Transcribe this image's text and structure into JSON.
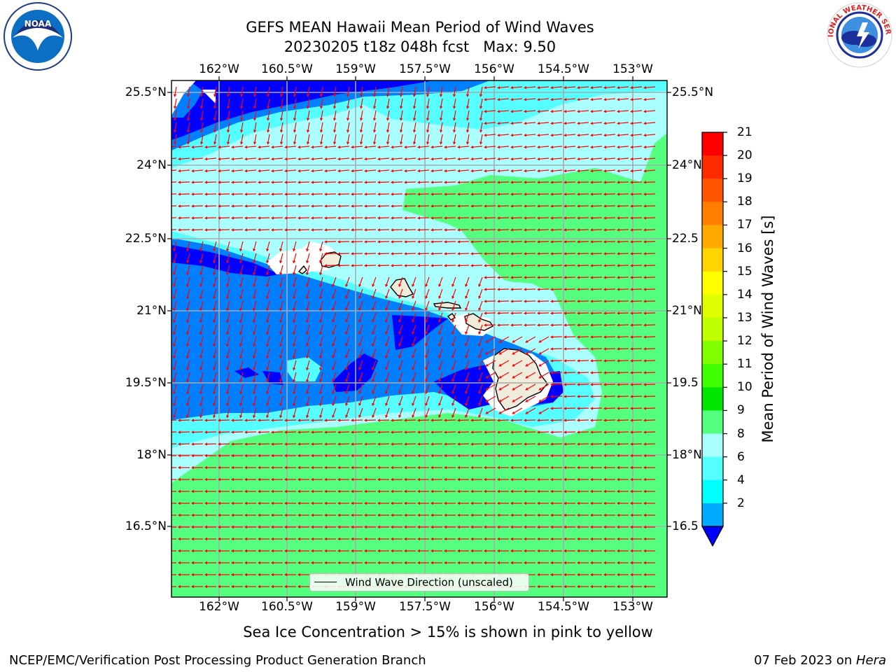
{
  "title": {
    "line1": "GEFS MEAN Hawaii Mean Period of Wind Waves",
    "line2": "20230205 t18z 048h fcst   Max: 9.50"
  },
  "axes": {
    "lon_ticks": [
      "162°W",
      "160.5°W",
      "159°W",
      "157.5°W",
      "156°W",
      "154.5°W",
      "153°W"
    ],
    "lat_ticks_left": [
      "25.5°N",
      "24°N",
      "22.5°N",
      "21°N",
      "19.5°N",
      "18°N",
      "16.5°N"
    ],
    "lat_ticks_right": [
      "25.5°N",
      "24°N",
      "22.5",
      "21°N",
      "19.5",
      "18°N",
      "16.5"
    ]
  },
  "colorbar": {
    "label": "Mean Period of Wind Waves [s]",
    "ticks": [
      "21",
      "20",
      "19",
      "18",
      "17",
      "16",
      "15",
      "14",
      "13",
      "12",
      "11",
      "10",
      "9",
      "8",
      "6",
      "4",
      "2"
    ],
    "colors": [
      "#ff0000",
      "#ff2a00",
      "#ff5500",
      "#ff8000",
      "#ffaa00",
      "#ffd400",
      "#ffff00",
      "#dfff00",
      "#bfff00",
      "#80ff00",
      "#40ff00",
      "#00e600",
      "#55ff80",
      "#aaffff",
      "#55ffff",
      "#00ffff",
      "#00aaff"
    ],
    "under_color": "#0000ff"
  },
  "legend": {
    "text": "Wind Wave Direction (unscaled)"
  },
  "note": "Sea Ice Concentration > 15% is shown in pink to yellow",
  "footer": {
    "left": "NCEP/EMC/Verification Post Processing Product Generation Branch",
    "right_date": "07 Feb 2023 on ",
    "right_machine": "Hera"
  },
  "logos": {
    "left": "NOAA",
    "right": "NATIONAL WEATHER SERVICE"
  },
  "map_colors": {
    "green": "#55ff80",
    "light_cyan": "#aaffff",
    "cyan": "#55ffff",
    "aqua": "#00ffff",
    "blue": "#0080ff",
    "dark_blue": "#0000ff",
    "land": "#f0ecdc",
    "arrow": "#ff0000"
  }
}
